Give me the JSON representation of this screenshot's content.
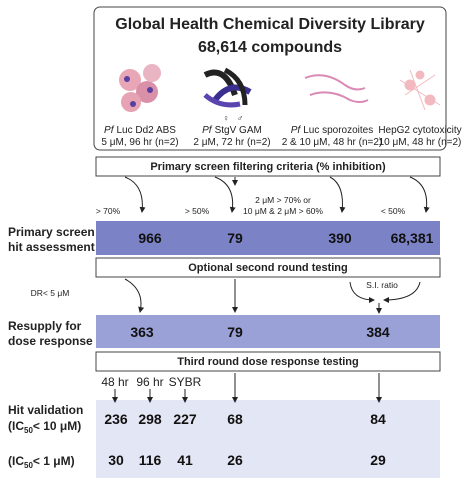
{
  "header": {
    "title": "Global Health Chemical Diversity Library",
    "subtitle": "68,614 compounds"
  },
  "assays": [
    {
      "species": "Pf",
      "name": "Luc Dd2 ABS",
      "detail": "5 μM, 96 hr (n=2)"
    },
    {
      "species": "Pf",
      "name": "StgV GAM",
      "detail": "2 μM, 72 hr (n=2)"
    },
    {
      "species": "Pf",
      "name": "Luc sporozoites",
      "detail": "2 & 10 μM, 48 hr (n=2)"
    },
    {
      "name": "HepG2 cytotoxicity",
      "detail": "10 μM, 48 hr (n=2)"
    }
  ],
  "sex_symbols": [
    "♀",
    "♂"
  ],
  "steps": {
    "primary_filter": "Primary screen filtering criteria (% inhibition)",
    "second_round": "Optional second round testing",
    "third_round": "Third round dose response testing"
  },
  "criteria": [
    "> 70%",
    "> 50%",
    "2 μM > 70% or",
    "10 μM & 2 μM > 60%",
    "< 50%"
  ],
  "annotations": {
    "dr": "DR< 5 μM",
    "si": "S.I. ratio",
    "conditions": [
      "48 hr",
      "96 hr",
      "SYBR"
    ]
  },
  "rows": [
    {
      "label": [
        "Primary screen",
        "hit assessment"
      ],
      "values": [
        "966",
        "79",
        "390",
        "68,381"
      ]
    },
    {
      "label": [
        "Resupply for",
        "dose response"
      ],
      "values": [
        "363",
        "79",
        "384"
      ]
    },
    {
      "label": [
        "Hit validation"
      ],
      "ic": {
        "prefix": "(IC",
        "sub": "50",
        "suffix": "< 10 μM)"
      },
      "values": [
        "236",
        "298",
        "227",
        "68",
        "84"
      ]
    },
    {
      "ic": {
        "prefix": "(IC",
        "sub": "50",
        "suffix": "< 1 μM)"
      },
      "values": [
        "30",
        "116",
        "41",
        "26",
        "29"
      ]
    }
  ]
}
